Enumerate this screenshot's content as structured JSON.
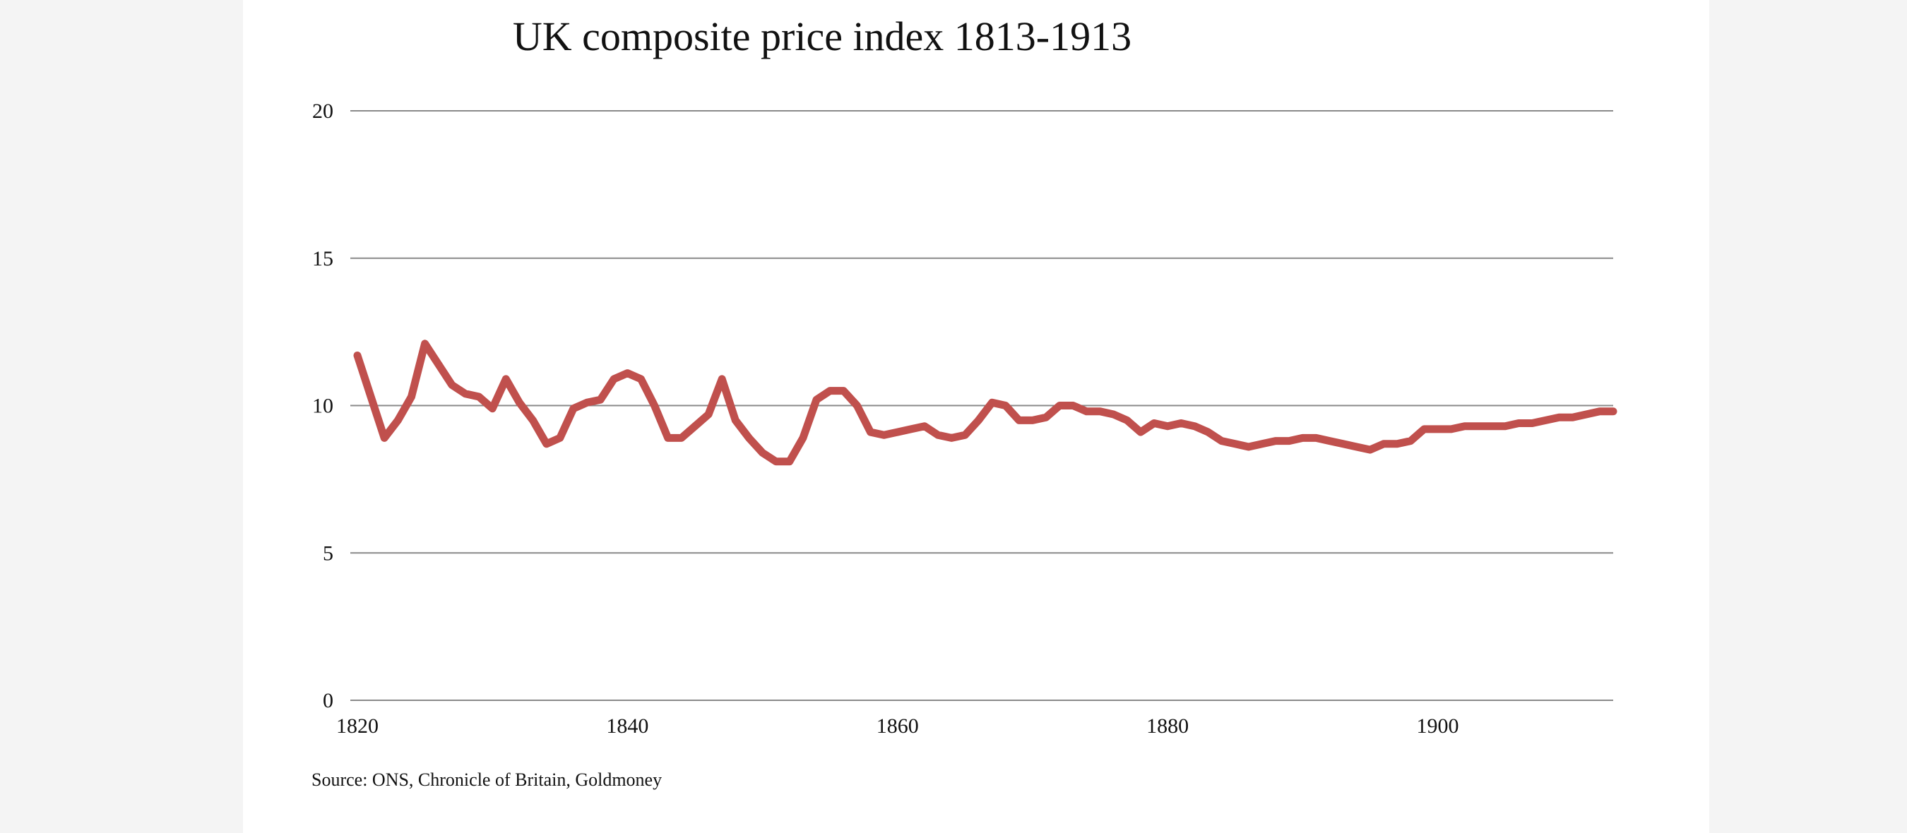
{
  "chart_data": {
    "type": "line",
    "title": "UK composite price index 1813-1913",
    "source": "Source: ONS, Chronicle of Britain, Goldmoney",
    "xlabel": "",
    "ylabel": "",
    "xlim": [
      1820,
      1913
    ],
    "ylim": [
      0,
      20
    ],
    "xticks": [
      1820,
      1840,
      1860,
      1880,
      1900
    ],
    "yticks": [
      0,
      5,
      10,
      15,
      20
    ],
    "grid": "horizontal",
    "legend": "none",
    "series": [
      {
        "color": "#c0504d",
        "x": [
          1820,
          1821,
          1822,
          1823,
          1824,
          1825,
          1826,
          1827,
          1828,
          1829,
          1830,
          1831,
          1832,
          1833,
          1834,
          1835,
          1836,
          1837,
          1838,
          1839,
          1840,
          1841,
          1842,
          1843,
          1844,
          1845,
          1846,
          1847,
          1848,
          1849,
          1850,
          1851,
          1852,
          1853,
          1854,
          1855,
          1856,
          1857,
          1858,
          1859,
          1860,
          1861,
          1862,
          1863,
          1864,
          1865,
          1866,
          1867,
          1868,
          1869,
          1870,
          1871,
          1872,
          1873,
          1874,
          1875,
          1876,
          1877,
          1878,
          1879,
          1880,
          1881,
          1882,
          1883,
          1884,
          1885,
          1886,
          1887,
          1888,
          1889,
          1890,
          1891,
          1892,
          1893,
          1894,
          1895,
          1896,
          1897,
          1898,
          1899,
          1900,
          1901,
          1902,
          1903,
          1904,
          1905,
          1906,
          1907,
          1908,
          1909,
          1910,
          1911,
          1912,
          1913
        ],
        "values": [
          11.7,
          10.3,
          8.9,
          9.5,
          10.3,
          12.1,
          11.4,
          10.7,
          10.4,
          10.3,
          9.9,
          10.9,
          10.1,
          9.5,
          8.7,
          8.9,
          9.9,
          10.1,
          10.2,
          10.9,
          11.1,
          10.9,
          10.0,
          8.9,
          8.9,
          9.3,
          9.7,
          10.9,
          9.5,
          8.9,
          8.4,
          8.1,
          8.1,
          8.9,
          10.2,
          10.5,
          10.5,
          10.0,
          9.1,
          9.0,
          9.1,
          9.2,
          9.3,
          9.0,
          8.9,
          9.0,
          9.5,
          10.1,
          10.0,
          9.5,
          9.5,
          9.6,
          10.0,
          10.0,
          9.8,
          9.8,
          9.7,
          9.5,
          9.1,
          9.4,
          9.3,
          9.4,
          9.3,
          9.1,
          8.8,
          8.7,
          8.6,
          8.7,
          8.8,
          8.8,
          8.9,
          8.9,
          8.8,
          8.7,
          8.6,
          8.5,
          8.7,
          8.7,
          8.8,
          9.2,
          9.2,
          9.2,
          9.3,
          9.3,
          9.3,
          9.3,
          9.4,
          9.4,
          9.5,
          9.6,
          9.6,
          9.7,
          9.8,
          9.8
        ]
      }
    ]
  }
}
